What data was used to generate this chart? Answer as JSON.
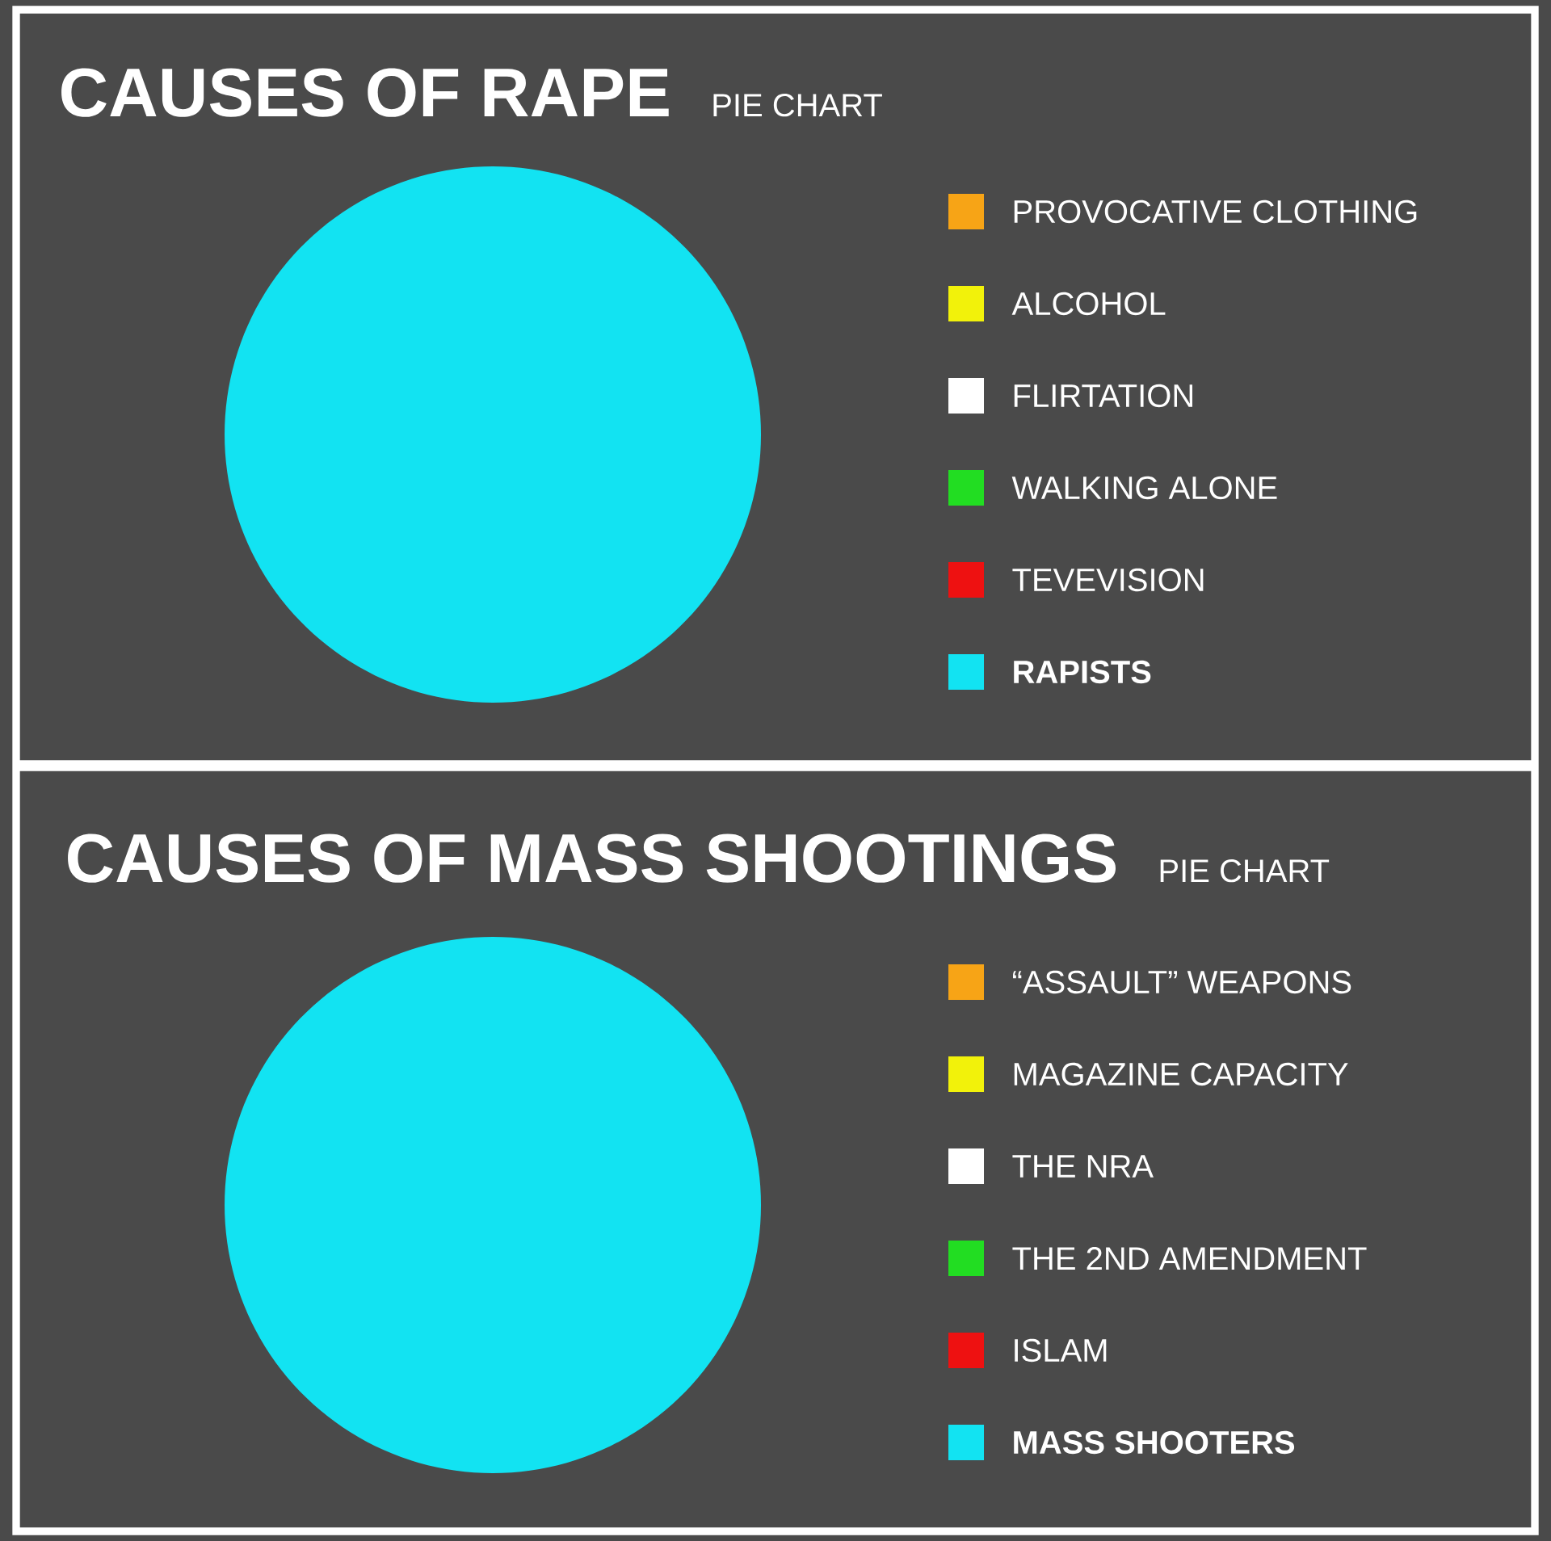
{
  "chart_data": [
    {
      "type": "pie",
      "title": "CAUSES OF RAPE",
      "subtitle": "PIE CHART",
      "legend": "right",
      "categories": [
        "PROVOCATIVE CLOTHING",
        "ALCOHOL",
        "FLIRTATION",
        "WALKING ALONE",
        "TEVEVISION",
        "RAPISTS"
      ],
      "values": [
        0,
        0,
        0,
        0,
        0,
        100
      ],
      "colors": [
        "#f7a416",
        "#f2f20a",
        "#ffffff",
        "#22dd22",
        "#ee1111",
        "#12e3f2"
      ]
    },
    {
      "type": "pie",
      "title": "CAUSES OF MASS SHOOTINGS",
      "subtitle": "PIE CHART",
      "legend": "right",
      "categories": [
        "“ASSAULT” WEAPONS",
        "MAGAZINE CAPACITY",
        "THE NRA",
        "THE 2ND AMENDMENT",
        "ISLAM",
        "MASS SHOOTERS"
      ],
      "values": [
        0,
        0,
        0,
        0,
        0,
        100
      ],
      "colors": [
        "#f7a416",
        "#f2f20a",
        "#ffffff",
        "#22dd22",
        "#ee1111",
        "#12e3f2"
      ]
    }
  ]
}
